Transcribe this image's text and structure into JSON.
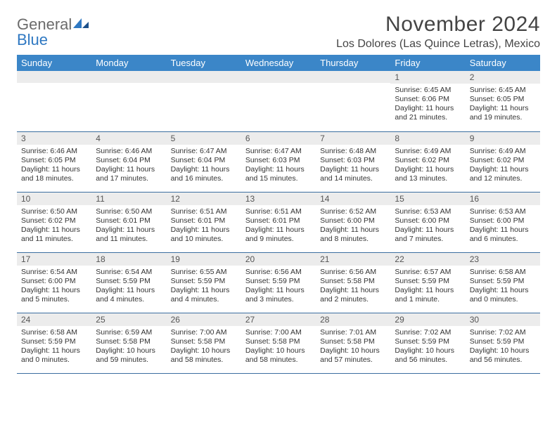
{
  "logo": {
    "line1": "General",
    "line2": "Blue"
  },
  "header": {
    "title": "November 2024",
    "location": "Los Dolores (Las Quince Letras), Mexico"
  },
  "colors": {
    "header_bg": "#3b86c8",
    "header_fg": "#ffffff",
    "daynum_bg": "#ececec",
    "rule": "#3b6ea0",
    "logo_gray": "#6b6b6b",
    "logo_blue": "#2f78c2"
  },
  "weekdays": [
    "Sunday",
    "Monday",
    "Tuesday",
    "Wednesday",
    "Thursday",
    "Friday",
    "Saturday"
  ],
  "weeks": [
    [
      {
        "n": "",
        "sr": "",
        "ss": "",
        "dl": ""
      },
      {
        "n": "",
        "sr": "",
        "ss": "",
        "dl": ""
      },
      {
        "n": "",
        "sr": "",
        "ss": "",
        "dl": ""
      },
      {
        "n": "",
        "sr": "",
        "ss": "",
        "dl": ""
      },
      {
        "n": "",
        "sr": "",
        "ss": "",
        "dl": ""
      },
      {
        "n": "1",
        "sr": "Sunrise: 6:45 AM",
        "ss": "Sunset: 6:06 PM",
        "dl": "Daylight: 11 hours and 21 minutes."
      },
      {
        "n": "2",
        "sr": "Sunrise: 6:45 AM",
        "ss": "Sunset: 6:05 PM",
        "dl": "Daylight: 11 hours and 19 minutes."
      }
    ],
    [
      {
        "n": "3",
        "sr": "Sunrise: 6:46 AM",
        "ss": "Sunset: 6:05 PM",
        "dl": "Daylight: 11 hours and 18 minutes."
      },
      {
        "n": "4",
        "sr": "Sunrise: 6:46 AM",
        "ss": "Sunset: 6:04 PM",
        "dl": "Daylight: 11 hours and 17 minutes."
      },
      {
        "n": "5",
        "sr": "Sunrise: 6:47 AM",
        "ss": "Sunset: 6:04 PM",
        "dl": "Daylight: 11 hours and 16 minutes."
      },
      {
        "n": "6",
        "sr": "Sunrise: 6:47 AM",
        "ss": "Sunset: 6:03 PM",
        "dl": "Daylight: 11 hours and 15 minutes."
      },
      {
        "n": "7",
        "sr": "Sunrise: 6:48 AM",
        "ss": "Sunset: 6:03 PM",
        "dl": "Daylight: 11 hours and 14 minutes."
      },
      {
        "n": "8",
        "sr": "Sunrise: 6:49 AM",
        "ss": "Sunset: 6:02 PM",
        "dl": "Daylight: 11 hours and 13 minutes."
      },
      {
        "n": "9",
        "sr": "Sunrise: 6:49 AM",
        "ss": "Sunset: 6:02 PM",
        "dl": "Daylight: 11 hours and 12 minutes."
      }
    ],
    [
      {
        "n": "10",
        "sr": "Sunrise: 6:50 AM",
        "ss": "Sunset: 6:02 PM",
        "dl": "Daylight: 11 hours and 11 minutes."
      },
      {
        "n": "11",
        "sr": "Sunrise: 6:50 AM",
        "ss": "Sunset: 6:01 PM",
        "dl": "Daylight: 11 hours and 11 minutes."
      },
      {
        "n": "12",
        "sr": "Sunrise: 6:51 AM",
        "ss": "Sunset: 6:01 PM",
        "dl": "Daylight: 11 hours and 10 minutes."
      },
      {
        "n": "13",
        "sr": "Sunrise: 6:51 AM",
        "ss": "Sunset: 6:01 PM",
        "dl": "Daylight: 11 hours and 9 minutes."
      },
      {
        "n": "14",
        "sr": "Sunrise: 6:52 AM",
        "ss": "Sunset: 6:00 PM",
        "dl": "Daylight: 11 hours and 8 minutes."
      },
      {
        "n": "15",
        "sr": "Sunrise: 6:53 AM",
        "ss": "Sunset: 6:00 PM",
        "dl": "Daylight: 11 hours and 7 minutes."
      },
      {
        "n": "16",
        "sr": "Sunrise: 6:53 AM",
        "ss": "Sunset: 6:00 PM",
        "dl": "Daylight: 11 hours and 6 minutes."
      }
    ],
    [
      {
        "n": "17",
        "sr": "Sunrise: 6:54 AM",
        "ss": "Sunset: 6:00 PM",
        "dl": "Daylight: 11 hours and 5 minutes."
      },
      {
        "n": "18",
        "sr": "Sunrise: 6:54 AM",
        "ss": "Sunset: 5:59 PM",
        "dl": "Daylight: 11 hours and 4 minutes."
      },
      {
        "n": "19",
        "sr": "Sunrise: 6:55 AM",
        "ss": "Sunset: 5:59 PM",
        "dl": "Daylight: 11 hours and 4 minutes."
      },
      {
        "n": "20",
        "sr": "Sunrise: 6:56 AM",
        "ss": "Sunset: 5:59 PM",
        "dl": "Daylight: 11 hours and 3 minutes."
      },
      {
        "n": "21",
        "sr": "Sunrise: 6:56 AM",
        "ss": "Sunset: 5:58 PM",
        "dl": "Daylight: 11 hours and 2 minutes."
      },
      {
        "n": "22",
        "sr": "Sunrise: 6:57 AM",
        "ss": "Sunset: 5:59 PM",
        "dl": "Daylight: 11 hours and 1 minute."
      },
      {
        "n": "23",
        "sr": "Sunrise: 6:58 AM",
        "ss": "Sunset: 5:59 PM",
        "dl": "Daylight: 11 hours and 0 minutes."
      }
    ],
    [
      {
        "n": "24",
        "sr": "Sunrise: 6:58 AM",
        "ss": "Sunset: 5:59 PM",
        "dl": "Daylight: 11 hours and 0 minutes."
      },
      {
        "n": "25",
        "sr": "Sunrise: 6:59 AM",
        "ss": "Sunset: 5:58 PM",
        "dl": "Daylight: 10 hours and 59 minutes."
      },
      {
        "n": "26",
        "sr": "Sunrise: 7:00 AM",
        "ss": "Sunset: 5:58 PM",
        "dl": "Daylight: 10 hours and 58 minutes."
      },
      {
        "n": "27",
        "sr": "Sunrise: 7:00 AM",
        "ss": "Sunset: 5:58 PM",
        "dl": "Daylight: 10 hours and 58 minutes."
      },
      {
        "n": "28",
        "sr": "Sunrise: 7:01 AM",
        "ss": "Sunset: 5:58 PM",
        "dl": "Daylight: 10 hours and 57 minutes."
      },
      {
        "n": "29",
        "sr": "Sunrise: 7:02 AM",
        "ss": "Sunset: 5:59 PM",
        "dl": "Daylight: 10 hours and 56 minutes."
      },
      {
        "n": "30",
        "sr": "Sunrise: 7:02 AM",
        "ss": "Sunset: 5:59 PM",
        "dl": "Daylight: 10 hours and 56 minutes."
      }
    ]
  ]
}
